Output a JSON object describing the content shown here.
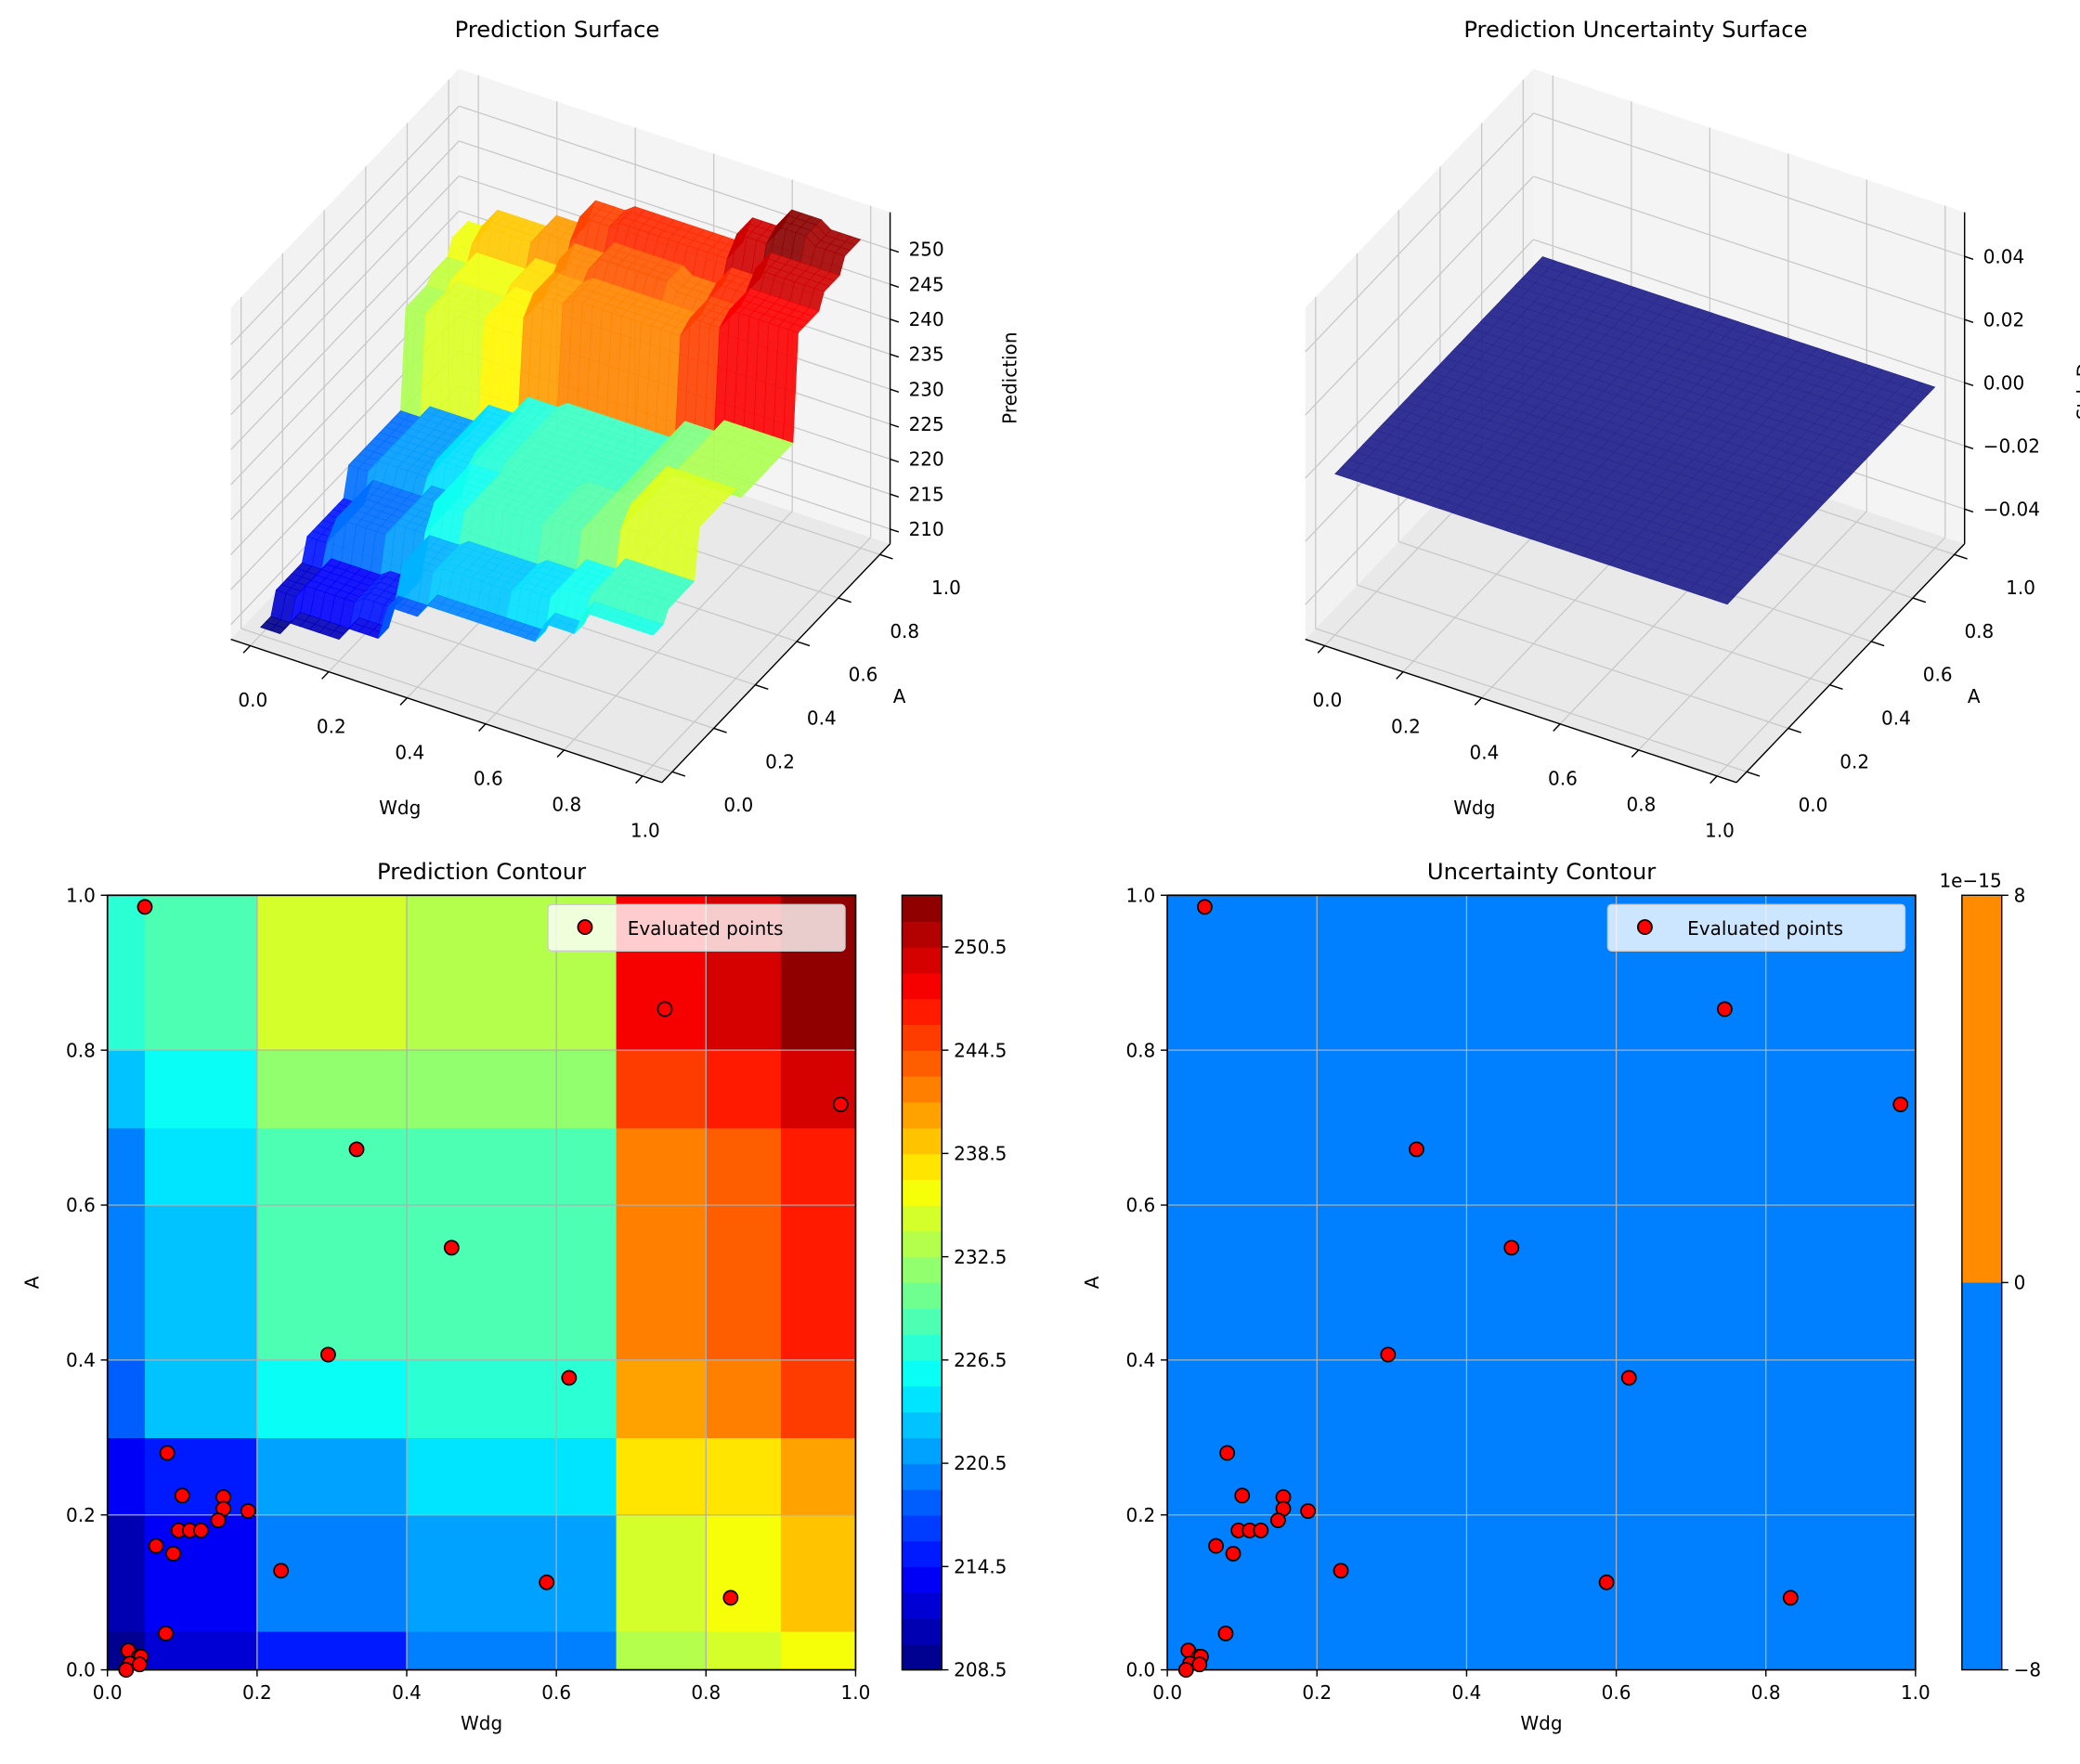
{
  "chart_data": [
    {
      "type": "surface3d",
      "title": "Prediction Surface",
      "xlabel": "Wdg",
      "ylabel": "A",
      "zlabel": "Prediction",
      "xticks": [
        "0.0",
        "0.2",
        "0.4",
        "0.6",
        "0.8",
        "1.0"
      ],
      "yticks": [
        "0.0",
        "0.2",
        "0.4",
        "0.6",
        "0.8",
        "1.0"
      ],
      "zticks": [
        "210",
        "215",
        "220",
        "225",
        "230",
        "235",
        "240",
        "245",
        "250"
      ],
      "zlim": [
        207.9,
        255.3
      ],
      "colormap": "jet"
    },
    {
      "type": "surface3d",
      "title": "Prediction Uncertainty Surface",
      "xlabel": "Wdg",
      "ylabel": "A",
      "zlabel": "Std. Dev.",
      "xticks": [
        "0.0",
        "0.2",
        "0.4",
        "0.6",
        "0.8",
        "1.0"
      ],
      "yticks": [
        "0.0",
        "0.2",
        "0.4",
        "0.6",
        "0.8",
        "1.0"
      ],
      "zticks": [
        "−0.04",
        "−0.02",
        "0.00",
        "0.02",
        "0.04"
      ],
      "zlim": [
        -0.051,
        0.054
      ],
      "surface_value": 0,
      "surface_color": "#27278f"
    },
    {
      "type": "contour",
      "title": "Prediction Contour",
      "xlabel": "Wdg",
      "ylabel": "A",
      "xlim": [
        0,
        1
      ],
      "ylim": [
        0,
        1
      ],
      "grid": true,
      "xticks": [
        "0.0",
        "0.2",
        "0.4",
        "0.6",
        "0.8",
        "1.0"
      ],
      "yticks": [
        "0.0",
        "0.2",
        "0.4",
        "0.6",
        "0.8",
        "1.0"
      ],
      "colormap": "jet",
      "levels": {
        "min": 208.5,
        "max": 253.5,
        "step": 1.5
      },
      "colorbar_ticks": [
        "208.5",
        "214.5",
        "220.5",
        "226.5",
        "232.5",
        "238.5",
        "244.5",
        "250.5"
      ],
      "x_edges": [
        0,
        0.05,
        0.2,
        0.4,
        0.68,
        0.8,
        0.9,
        1.0
      ],
      "y_edges": [
        0,
        0.05,
        0.2,
        0.3,
        0.4,
        0.6,
        0.7,
        0.8,
        0.9,
        1.0
      ],
      "z": [
        [
          209,
          212,
          215,
          219,
          233,
          234,
          236
        ],
        [
          211,
          214,
          219,
          221,
          235,
          236,
          239
        ],
        [
          213,
          215,
          221,
          224,
          237,
          238,
          241
        ],
        [
          218,
          222,
          226,
          227,
          241,
          242,
          245
        ],
        [
          220,
          223,
          228,
          228,
          242,
          244,
          246
        ],
        [
          220,
          224,
          229,
          228,
          242,
          243,
          246
        ],
        [
          223,
          226,
          231,
          231,
          245,
          246,
          250
        ],
        [
          226.5,
          228,
          235,
          233,
          248,
          250,
          253
        ],
        [
          226.5,
          228,
          235,
          233,
          248,
          250,
          252
        ]
      ],
      "legend": {
        "label": "Evaluated points",
        "placement": "top-right"
      },
      "points": [
        [
          0.05,
          0.985
        ],
        [
          0.745,
          0.853
        ],
        [
          0.98,
          0.73
        ],
        [
          0.333,
          0.672
        ],
        [
          0.46,
          0.545
        ],
        [
          0.295,
          0.407
        ],
        [
          0.617,
          0.377
        ],
        [
          0.08,
          0.28
        ],
        [
          0.1,
          0.225
        ],
        [
          0.155,
          0.223
        ],
        [
          0.155,
          0.208
        ],
        [
          0.188,
          0.205
        ],
        [
          0.148,
          0.193
        ],
        [
          0.095,
          0.18
        ],
        [
          0.11,
          0.18
        ],
        [
          0.125,
          0.18
        ],
        [
          0.065,
          0.16
        ],
        [
          0.088,
          0.15
        ],
        [
          0.232,
          0.128
        ],
        [
          0.587,
          0.113
        ],
        [
          0.833,
          0.093
        ],
        [
          0.078,
          0.047
        ],
        [
          0.028,
          0.025
        ],
        [
          0.042,
          0.017
        ],
        [
          0.045,
          0.017
        ],
        [
          0.03,
          0.008
        ],
        [
          0.043,
          0.007
        ],
        [
          0.025,
          0.0
        ]
      ]
    },
    {
      "type": "contour",
      "title": "Uncertainty Contour",
      "xlabel": "Wdg",
      "ylabel": "A",
      "xlim": [
        0,
        1
      ],
      "ylim": [
        0,
        1
      ],
      "grid": true,
      "xticks": [
        "0.0",
        "0.2",
        "0.4",
        "0.6",
        "0.8",
        "1.0"
      ],
      "yticks": [
        "0.0",
        "0.2",
        "0.4",
        "0.6",
        "0.8",
        "1.0"
      ],
      "colorbar_ticks": [
        "−8",
        "0",
        "8"
      ],
      "colorbar_exponent": "1e−15",
      "bands": [
        {
          "range": [
            -8,
            0
          ],
          "color": "#0080ff"
        },
        {
          "range": [
            0,
            8
          ],
          "color": "#ff8c00"
        }
      ],
      "fill_color": "#0080ff",
      "legend": {
        "label": "Evaluated points",
        "placement": "top-right"
      },
      "points_same_as": "Prediction Contour"
    }
  ]
}
